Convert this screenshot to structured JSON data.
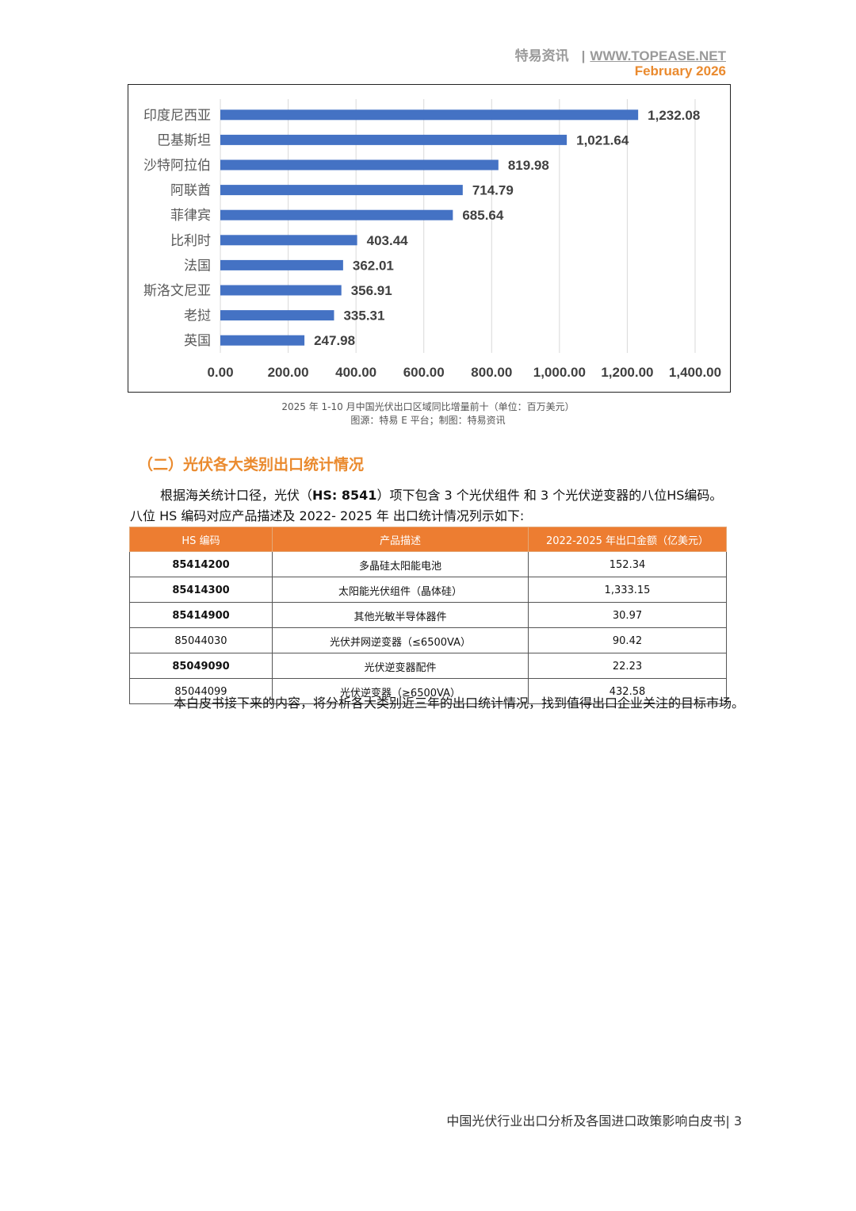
{
  "header": {
    "brand": "特易资讯",
    "separator": "|",
    "url": "WWW.TOPEASE.NET",
    "date": "February 2026"
  },
  "chart_data": {
    "type": "bar",
    "orientation": "horizontal",
    "categories": [
      "印度尼西亚",
      "巴基斯坦",
      "沙特阿拉伯",
      "阿联酋",
      "菲律宾",
      "比利时",
      "法国",
      "斯洛文尼亚",
      "老挝",
      "英国"
    ],
    "values": [
      1232.08,
      1021.64,
      819.98,
      714.79,
      685.64,
      403.44,
      362.01,
      356.91,
      335.31,
      247.98
    ],
    "value_labels": [
      "1,232.08",
      "1,021.64",
      "819.98",
      "714.79",
      "685.64",
      "403.44",
      "362.01",
      "356.91",
      "335.31",
      "247.98"
    ],
    "xlim": [
      0,
      1400
    ],
    "x_ticks": [
      "0.00",
      "200.00",
      "400.00",
      "600.00",
      "800.00",
      "1,000.00",
      "1,200.00",
      "1,400.00"
    ],
    "grid": "vertical",
    "bar_color": "#4472c4",
    "title": "",
    "xlabel": "",
    "ylabel": ""
  },
  "caption": {
    "line1": "2025 年 1-10 月中国光伏出口区域同比增量前十（单位：百万美元）",
    "line2": "图源：特易 E 平台；制图：特易资讯"
  },
  "section": {
    "title": "（二）光伏各大类别出口统计情况"
  },
  "intro": {
    "p1_a": "根据海关统计口径，光伏（",
    "p1_b": "HS: 8541",
    "p1_c": "）项下包含 3 个光伏组件 和 3 个光伏逆变器的八位HS编码。",
    "p2": "八位 HS 编码对应产品描述及 2022- 2025 年 出口统计情况列示如下:"
  },
  "table": {
    "headers": [
      "HS 编码",
      "产品描述",
      "2022-2025 年出口金额（亿美元）"
    ],
    "rows": [
      {
        "code": "85414200",
        "desc": "多晶硅太阳能电池",
        "amount": "152.34"
      },
      {
        "code": "85414300",
        "desc": "太阳能光伏组件（晶体硅）",
        "amount": "1,333.15"
      },
      {
        "code": "85414900",
        "desc": "其他光敏半导体器件",
        "amount": "30.97"
      },
      {
        "code": "85044030",
        "desc": "光伏并网逆变器（≤6500VA）",
        "amount": "90.42"
      },
      {
        "code": "85049090",
        "desc": "光伏逆变器配件",
        "amount": "22.23"
      },
      {
        "code": "85044099",
        "desc": "光伏逆变器（≥6500VA）",
        "amount": "432.58"
      }
    ]
  },
  "closing": {
    "text": "本白皮书接下来的内容，将分析各大类别近三年的出口统计情况，找到值得出口企业关注的目标市场。"
  },
  "footer": {
    "title": "中国光伏行业出口分析及各国进口政策影响白皮书",
    "separator": "|",
    "page": "3"
  }
}
